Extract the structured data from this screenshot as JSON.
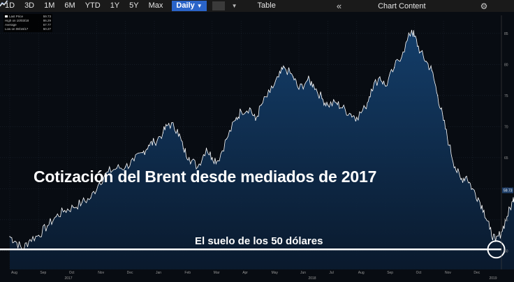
{
  "toolbar": {
    "ranges": [
      "1D",
      "3D",
      "1M",
      "6M",
      "YTD",
      "1Y",
      "5Y",
      "Max"
    ],
    "interval": "Daily",
    "interval_caret": "▼",
    "table_label": "Table",
    "collapse_icon": "«",
    "chart_content_label": "Chart Content",
    "gear_icon": "⚙"
  },
  "legend": {
    "rows": [
      {
        "label": "Last Price",
        "value": "59.73"
      },
      {
        "label": "High on 10/03/18",
        "value": "86.29"
      },
      {
        "label": "Average",
        "value": "67.77"
      },
      {
        "label": "Low on 08/16/17",
        "value": "50.27"
      }
    ]
  },
  "overlay": {
    "title": "Cotización del Brent desde mediados de 2017",
    "floor_label": "El suelo de los 50 dólares"
  },
  "colors": {
    "area_top": "#123a66",
    "area_bottom": "#0a1a2e",
    "line": "#ffffff",
    "background": "#080c12"
  },
  "chart_data": {
    "type": "area",
    "x_ticks": [
      "Aug",
      "Sep",
      "Oct",
      "Nov",
      "Dec",
      "Jan",
      "Feb",
      "Mar",
      "Apr",
      "May",
      "Jun",
      "Jul",
      "Aug",
      "Sep",
      "Oct",
      "Nov",
      "Dec"
    ],
    "year_labels": [
      "2017",
      "2018",
      "2019"
    ],
    "y_ticks": [
      "50",
      "55",
      "60",
      "65",
      "70",
      "75",
      "80",
      "85"
    ],
    "ylim": [
      47,
      87
    ],
    "last_price_label": "59.73",
    "floor_value": 50,
    "series": [
      {
        "values": [
          [
            0,
            52.3
          ],
          [
            0.2,
            51.5
          ],
          [
            0.45,
            50.3
          ],
          [
            0.7,
            51.8
          ],
          [
            1.0,
            52.5
          ],
          [
            1.3,
            54.0
          ],
          [
            1.6,
            55.5
          ],
          [
            1.9,
            56.5
          ],
          [
            2.2,
            57.0
          ],
          [
            2.5,
            57.8
          ],
          [
            2.8,
            58.5
          ],
          [
            3.1,
            61.0
          ],
          [
            3.4,
            62.7
          ],
          [
            3.7,
            63.3
          ],
          [
            4.0,
            63.5
          ],
          [
            4.3,
            64.5
          ],
          [
            4.6,
            65.8
          ],
          [
            4.8,
            67.0
          ],
          [
            5.0,
            67.5
          ],
          [
            5.3,
            69.0
          ],
          [
            5.5,
            70.5
          ],
          [
            5.8,
            69.5
          ],
          [
            6.0,
            66.5
          ],
          [
            6.2,
            65.0
          ],
          [
            6.5,
            63.5
          ],
          [
            6.8,
            66.5
          ],
          [
            7.0,
            65.0
          ],
          [
            7.2,
            64.5
          ],
          [
            7.5,
            68.0
          ],
          [
            7.8,
            71.0
          ],
          [
            8.0,
            72.5
          ],
          [
            8.3,
            73.0
          ],
          [
            8.5,
            71.0
          ],
          [
            8.7,
            73.5
          ],
          [
            9.0,
            75.5
          ],
          [
            9.3,
            78.0
          ],
          [
            9.5,
            79.5
          ],
          [
            9.8,
            78.0
          ],
          [
            10.0,
            76.0
          ],
          [
            10.3,
            77.5
          ],
          [
            10.5,
            76.8
          ],
          [
            10.8,
            74.5
          ],
          [
            11.0,
            73.5
          ],
          [
            11.3,
            73.8
          ],
          [
            11.5,
            73.0
          ],
          [
            11.8,
            72.0
          ],
          [
            12.0,
            71.5
          ],
          [
            12.3,
            73.0
          ],
          [
            12.5,
            76.0
          ],
          [
            12.8,
            78.0
          ],
          [
            13.0,
            76.5
          ],
          [
            13.3,
            79.5
          ],
          [
            13.6,
            82.0
          ],
          [
            13.9,
            85.5
          ],
          [
            14.0,
            84.5
          ],
          [
            14.2,
            82.0
          ],
          [
            14.4,
            80.5
          ],
          [
            14.6,
            79.0
          ],
          [
            14.8,
            75.0
          ],
          [
            15.0,
            71.0
          ],
          [
            15.2,
            67.0
          ],
          [
            15.4,
            63.5
          ],
          [
            15.6,
            61.5
          ],
          [
            15.8,
            62.0
          ],
          [
            16.0,
            60.0
          ],
          [
            16.2,
            58.5
          ],
          [
            16.4,
            56.5
          ],
          [
            16.6,
            53.5
          ],
          [
            16.8,
            51.5
          ],
          [
            17.0,
            53.0
          ],
          [
            17.2,
            55.5
          ],
          [
            17.4,
            58.0
          ],
          [
            17.5,
            59.73
          ]
        ]
      }
    ]
  }
}
